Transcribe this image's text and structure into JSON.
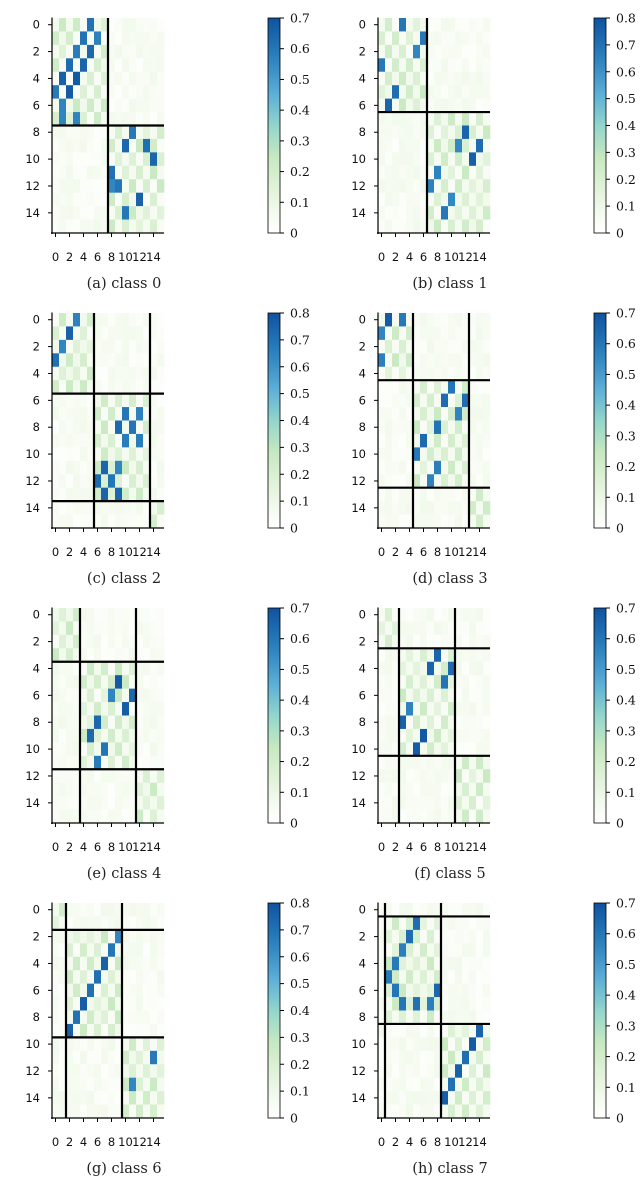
{
  "figure": {
    "panels": [
      {
        "caption": "(a) class 0",
        "colorbar_max": 0.7,
        "colorbar_ticks": [
          "0",
          "0.1",
          "0.2",
          "0.3",
          "0.4",
          "0.5",
          "0.6",
          "0.7"
        ],
        "boundaries": [
          8
        ],
        "dark_cells": [
          [
            0,
            5
          ],
          [
            1,
            4
          ],
          [
            1,
            6
          ],
          [
            2,
            3
          ],
          [
            2,
            5
          ],
          [
            3,
            2
          ],
          [
            3,
            4
          ],
          [
            4,
            1
          ],
          [
            4,
            3
          ],
          [
            5,
            0
          ],
          [
            5,
            2
          ],
          [
            6,
            1
          ],
          [
            7,
            1
          ],
          [
            7,
            3
          ],
          [
            8,
            11
          ],
          [
            9,
            10
          ],
          [
            9,
            13
          ],
          [
            10,
            14
          ],
          [
            11,
            8
          ],
          [
            12,
            8
          ],
          [
            12,
            9
          ],
          [
            13,
            12
          ],
          [
            14,
            10
          ]
        ]
      },
      {
        "caption": "(b) class 1",
        "colorbar_max": 0.8,
        "colorbar_ticks": [
          "0",
          "0.1",
          "0.2",
          "0.3",
          "0.4",
          "0.5",
          "0.6",
          "0.7",
          "0.8"
        ],
        "boundaries": [
          7
        ],
        "dark_cells": [
          [
            0,
            3
          ],
          [
            1,
            6
          ],
          [
            2,
            5
          ],
          [
            3,
            0
          ],
          [
            5,
            2
          ],
          [
            6,
            1
          ],
          [
            8,
            12
          ],
          [
            9,
            11
          ],
          [
            9,
            14
          ],
          [
            10,
            13
          ],
          [
            11,
            8
          ],
          [
            12,
            7
          ],
          [
            13,
            10
          ],
          [
            14,
            9
          ]
        ]
      },
      {
        "caption": "(c) class 2",
        "colorbar_max": 0.8,
        "colorbar_ticks": [
          "0",
          "0.1",
          "0.2",
          "0.3",
          "0.4",
          "0.5",
          "0.6",
          "0.7",
          "0.8"
        ],
        "boundaries": [
          6,
          14
        ],
        "dark_cells": [
          [
            0,
            3
          ],
          [
            1,
            2
          ],
          [
            2,
            1
          ],
          [
            3,
            0
          ],
          [
            7,
            10
          ],
          [
            7,
            12
          ],
          [
            8,
            9
          ],
          [
            8,
            11
          ],
          [
            9,
            10
          ],
          [
            9,
            12
          ],
          [
            11,
            7
          ],
          [
            11,
            9
          ],
          [
            12,
            6
          ],
          [
            12,
            8
          ],
          [
            13,
            7
          ],
          [
            13,
            9
          ]
        ]
      },
      {
        "caption": "(d) class 3",
        "colorbar_max": 0.7,
        "colorbar_ticks": [
          "0",
          "0.1",
          "0.2",
          "0.3",
          "0.4",
          "0.5",
          "0.6",
          "0.7"
        ],
        "boundaries": [
          5,
          13
        ],
        "dark_cells": [
          [
            0,
            1
          ],
          [
            0,
            3
          ],
          [
            1,
            0
          ],
          [
            3,
            0
          ],
          [
            5,
            10
          ],
          [
            6,
            9
          ],
          [
            6,
            12
          ],
          [
            7,
            11
          ],
          [
            8,
            8
          ],
          [
            9,
            6
          ],
          [
            10,
            5
          ],
          [
            11,
            8
          ],
          [
            12,
            7
          ]
        ]
      },
      {
        "caption": "(e) class 4",
        "colorbar_max": 0.7,
        "colorbar_ticks": [
          "0",
          "0.1",
          "0.2",
          "0.3",
          "0.4",
          "0.5",
          "0.6",
          "0.7"
        ],
        "boundaries": [
          4,
          12
        ],
        "dark_cells": [
          [
            5,
            9
          ],
          [
            6,
            8
          ],
          [
            6,
            11
          ],
          [
            7,
            10
          ],
          [
            8,
            6
          ],
          [
            9,
            5
          ],
          [
            10,
            7
          ],
          [
            11,
            6
          ]
        ]
      },
      {
        "caption": "(f) class 5",
        "colorbar_max": 0.7,
        "colorbar_ticks": [
          "0",
          "0.1",
          "0.2",
          "0.3",
          "0.4",
          "0.5",
          "0.6",
          "0.7"
        ],
        "boundaries": [
          3,
          11
        ],
        "dark_cells": [
          [
            3,
            8
          ],
          [
            4,
            7
          ],
          [
            4,
            10
          ],
          [
            5,
            9
          ],
          [
            7,
            4
          ],
          [
            8,
            3
          ],
          [
            9,
            6
          ],
          [
            10,
            5
          ]
        ]
      },
      {
        "caption": "(g) class 6",
        "colorbar_max": 0.8,
        "colorbar_ticks": [
          "0",
          "0.1",
          "0.2",
          "0.3",
          "0.4",
          "0.5",
          "0.6",
          "0.7",
          "0.8"
        ],
        "boundaries": [
          2,
          10
        ],
        "dark_cells": [
          [
            2,
            9
          ],
          [
            3,
            8
          ],
          [
            4,
            7
          ],
          [
            5,
            6
          ],
          [
            6,
            5
          ],
          [
            7,
            4
          ],
          [
            8,
            3
          ],
          [
            9,
            2
          ],
          [
            11,
            14
          ],
          [
            13,
            11
          ]
        ]
      },
      {
        "caption": "(h) class 7",
        "colorbar_max": 0.7,
        "colorbar_ticks": [
          "0",
          "0.1",
          "0.2",
          "0.3",
          "0.4",
          "0.5",
          "0.6",
          "0.7"
        ],
        "boundaries": [
          1,
          9
        ],
        "dark_cells": [
          [
            1,
            5
          ],
          [
            2,
            4
          ],
          [
            3,
            3
          ],
          [
            4,
            2
          ],
          [
            5,
            1
          ],
          [
            6,
            2
          ],
          [
            6,
            8
          ],
          [
            7,
            3
          ],
          [
            7,
            5
          ],
          [
            7,
            7
          ],
          [
            9,
            14
          ],
          [
            10,
            13
          ],
          [
            11,
            12
          ],
          [
            12,
            11
          ],
          [
            13,
            10
          ],
          [
            14,
            9
          ]
        ]
      }
    ]
  },
  "chart_data": [
    {
      "type": "heatmap",
      "caption": "(a) class 0",
      "size": 16,
      "xticks": [
        0,
        2,
        4,
        6,
        8,
        10,
        12,
        14
      ],
      "yticks": [
        0,
        2,
        4,
        6,
        8,
        10,
        12,
        14
      ],
      "colorbar_range": [
        0,
        0.7
      ],
      "colormap": "white-green-blue",
      "block_boundaries": [
        8
      ],
      "high_value_cells": [
        [
          0,
          5
        ],
        [
          1,
          4
        ],
        [
          1,
          6
        ],
        [
          2,
          3
        ],
        [
          2,
          5
        ],
        [
          3,
          2
        ],
        [
          3,
          4
        ],
        [
          4,
          1
        ],
        [
          4,
          3
        ],
        [
          5,
          0
        ],
        [
          5,
          2
        ],
        [
          6,
          1
        ],
        [
          7,
          1
        ],
        [
          7,
          3
        ],
        [
          8,
          11
        ],
        [
          9,
          10
        ],
        [
          9,
          13
        ],
        [
          10,
          14
        ],
        [
          11,
          8
        ],
        [
          12,
          8
        ],
        [
          12,
          9
        ],
        [
          13,
          12
        ],
        [
          14,
          10
        ]
      ]
    },
    {
      "type": "heatmap",
      "caption": "(b) class 1",
      "size": 16,
      "xticks": [
        0,
        2,
        4,
        6,
        8,
        10,
        12,
        14
      ],
      "yticks": [
        0,
        2,
        4,
        6,
        8,
        10,
        12,
        14
      ],
      "colorbar_range": [
        0,
        0.8
      ],
      "colormap": "white-green-blue",
      "block_boundaries": [
        7
      ],
      "high_value_cells": [
        [
          0,
          3
        ],
        [
          1,
          6
        ],
        [
          2,
          5
        ],
        [
          3,
          0
        ],
        [
          5,
          2
        ],
        [
          6,
          1
        ],
        [
          8,
          12
        ],
        [
          9,
          11
        ],
        [
          9,
          14
        ],
        [
          10,
          13
        ],
        [
          11,
          8
        ],
        [
          12,
          7
        ],
        [
          13,
          10
        ],
        [
          14,
          9
        ]
      ]
    },
    {
      "type": "heatmap",
      "caption": "(c) class 2",
      "size": 16,
      "xticks": [
        0,
        2,
        4,
        6,
        8,
        10,
        12,
        14
      ],
      "yticks": [
        0,
        2,
        4,
        6,
        8,
        10,
        12,
        14
      ],
      "colorbar_range": [
        0,
        0.8
      ],
      "colormap": "white-green-blue",
      "block_boundaries": [
        6,
        14
      ],
      "high_value_cells": [
        [
          0,
          3
        ],
        [
          1,
          2
        ],
        [
          2,
          1
        ],
        [
          3,
          0
        ],
        [
          7,
          10
        ],
        [
          7,
          12
        ],
        [
          8,
          9
        ],
        [
          8,
          11
        ],
        [
          9,
          10
        ],
        [
          9,
          12
        ],
        [
          11,
          7
        ],
        [
          11,
          9
        ],
        [
          12,
          6
        ],
        [
          12,
          8
        ],
        [
          13,
          7
        ],
        [
          13,
          9
        ]
      ]
    },
    {
      "type": "heatmap",
      "caption": "(d) class 3",
      "size": 16,
      "xticks": [
        0,
        2,
        4,
        6,
        8,
        10,
        12,
        14
      ],
      "yticks": [
        0,
        2,
        4,
        6,
        8,
        10,
        12,
        14
      ],
      "colorbar_range": [
        0,
        0.7
      ],
      "colormap": "white-green-blue",
      "block_boundaries": [
        5,
        13
      ],
      "high_value_cells": [
        [
          0,
          1
        ],
        [
          0,
          3
        ],
        [
          1,
          0
        ],
        [
          3,
          0
        ],
        [
          5,
          10
        ],
        [
          6,
          9
        ],
        [
          6,
          12
        ],
        [
          7,
          11
        ],
        [
          8,
          8
        ],
        [
          9,
          6
        ],
        [
          10,
          5
        ],
        [
          11,
          8
        ],
        [
          12,
          7
        ]
      ]
    },
    {
      "type": "heatmap",
      "caption": "(e) class 4",
      "size": 16,
      "xticks": [
        0,
        2,
        4,
        6,
        8,
        10,
        12,
        14
      ],
      "yticks": [
        0,
        2,
        4,
        6,
        8,
        10,
        12,
        14
      ],
      "colorbar_range": [
        0,
        0.7
      ],
      "colormap": "white-green-blue",
      "block_boundaries": [
        4,
        12
      ],
      "high_value_cells": [
        [
          5,
          9
        ],
        [
          6,
          8
        ],
        [
          6,
          11
        ],
        [
          7,
          10
        ],
        [
          8,
          6
        ],
        [
          9,
          5
        ],
        [
          10,
          7
        ],
        [
          11,
          6
        ]
      ]
    },
    {
      "type": "heatmap",
      "caption": "(f) class 5",
      "size": 16,
      "xticks": [
        0,
        2,
        4,
        6,
        8,
        10,
        12,
        14
      ],
      "yticks": [
        0,
        2,
        4,
        6,
        8,
        10,
        12,
        14
      ],
      "colorbar_range": [
        0,
        0.7
      ],
      "colormap": "white-green-blue",
      "block_boundaries": [
        3,
        11
      ],
      "high_value_cells": [
        [
          3,
          8
        ],
        [
          4,
          7
        ],
        [
          4,
          10
        ],
        [
          5,
          9
        ],
        [
          7,
          4
        ],
        [
          8,
          3
        ],
        [
          9,
          6
        ],
        [
          10,
          5
        ]
      ]
    },
    {
      "type": "heatmap",
      "caption": "(g) class 6",
      "size": 16,
      "xticks": [
        0,
        2,
        4,
        6,
        8,
        10,
        12,
        14
      ],
      "yticks": [
        0,
        2,
        4,
        6,
        8,
        10,
        12,
        14
      ],
      "colorbar_range": [
        0,
        0.8
      ],
      "colormap": "white-green-blue",
      "block_boundaries": [
        2,
        10
      ],
      "high_value_cells": [
        [
          2,
          9
        ],
        [
          3,
          8
        ],
        [
          4,
          7
        ],
        [
          5,
          6
        ],
        [
          6,
          5
        ],
        [
          7,
          4
        ],
        [
          8,
          3
        ],
        [
          9,
          2
        ],
        [
          11,
          14
        ],
        [
          13,
          11
        ]
      ]
    },
    {
      "type": "heatmap",
      "caption": "(h) class 7",
      "size": 16,
      "xticks": [
        0,
        2,
        4,
        6,
        8,
        10,
        12,
        14
      ],
      "yticks": [
        0,
        2,
        4,
        6,
        8,
        10,
        12,
        14
      ],
      "colorbar_range": [
        0,
        0.7
      ],
      "colormap": "white-green-blue",
      "block_boundaries": [
        1,
        9
      ],
      "high_value_cells": [
        [
          1,
          5
        ],
        [
          2,
          4
        ],
        [
          3,
          3
        ],
        [
          4,
          2
        ],
        [
          5,
          1
        ],
        [
          6,
          2
        ],
        [
          6,
          8
        ],
        [
          7,
          3
        ],
        [
          7,
          5
        ],
        [
          7,
          7
        ],
        [
          9,
          14
        ],
        [
          10,
          13
        ],
        [
          11,
          12
        ],
        [
          12,
          11
        ],
        [
          13,
          10
        ],
        [
          14,
          9
        ]
      ]
    }
  ]
}
